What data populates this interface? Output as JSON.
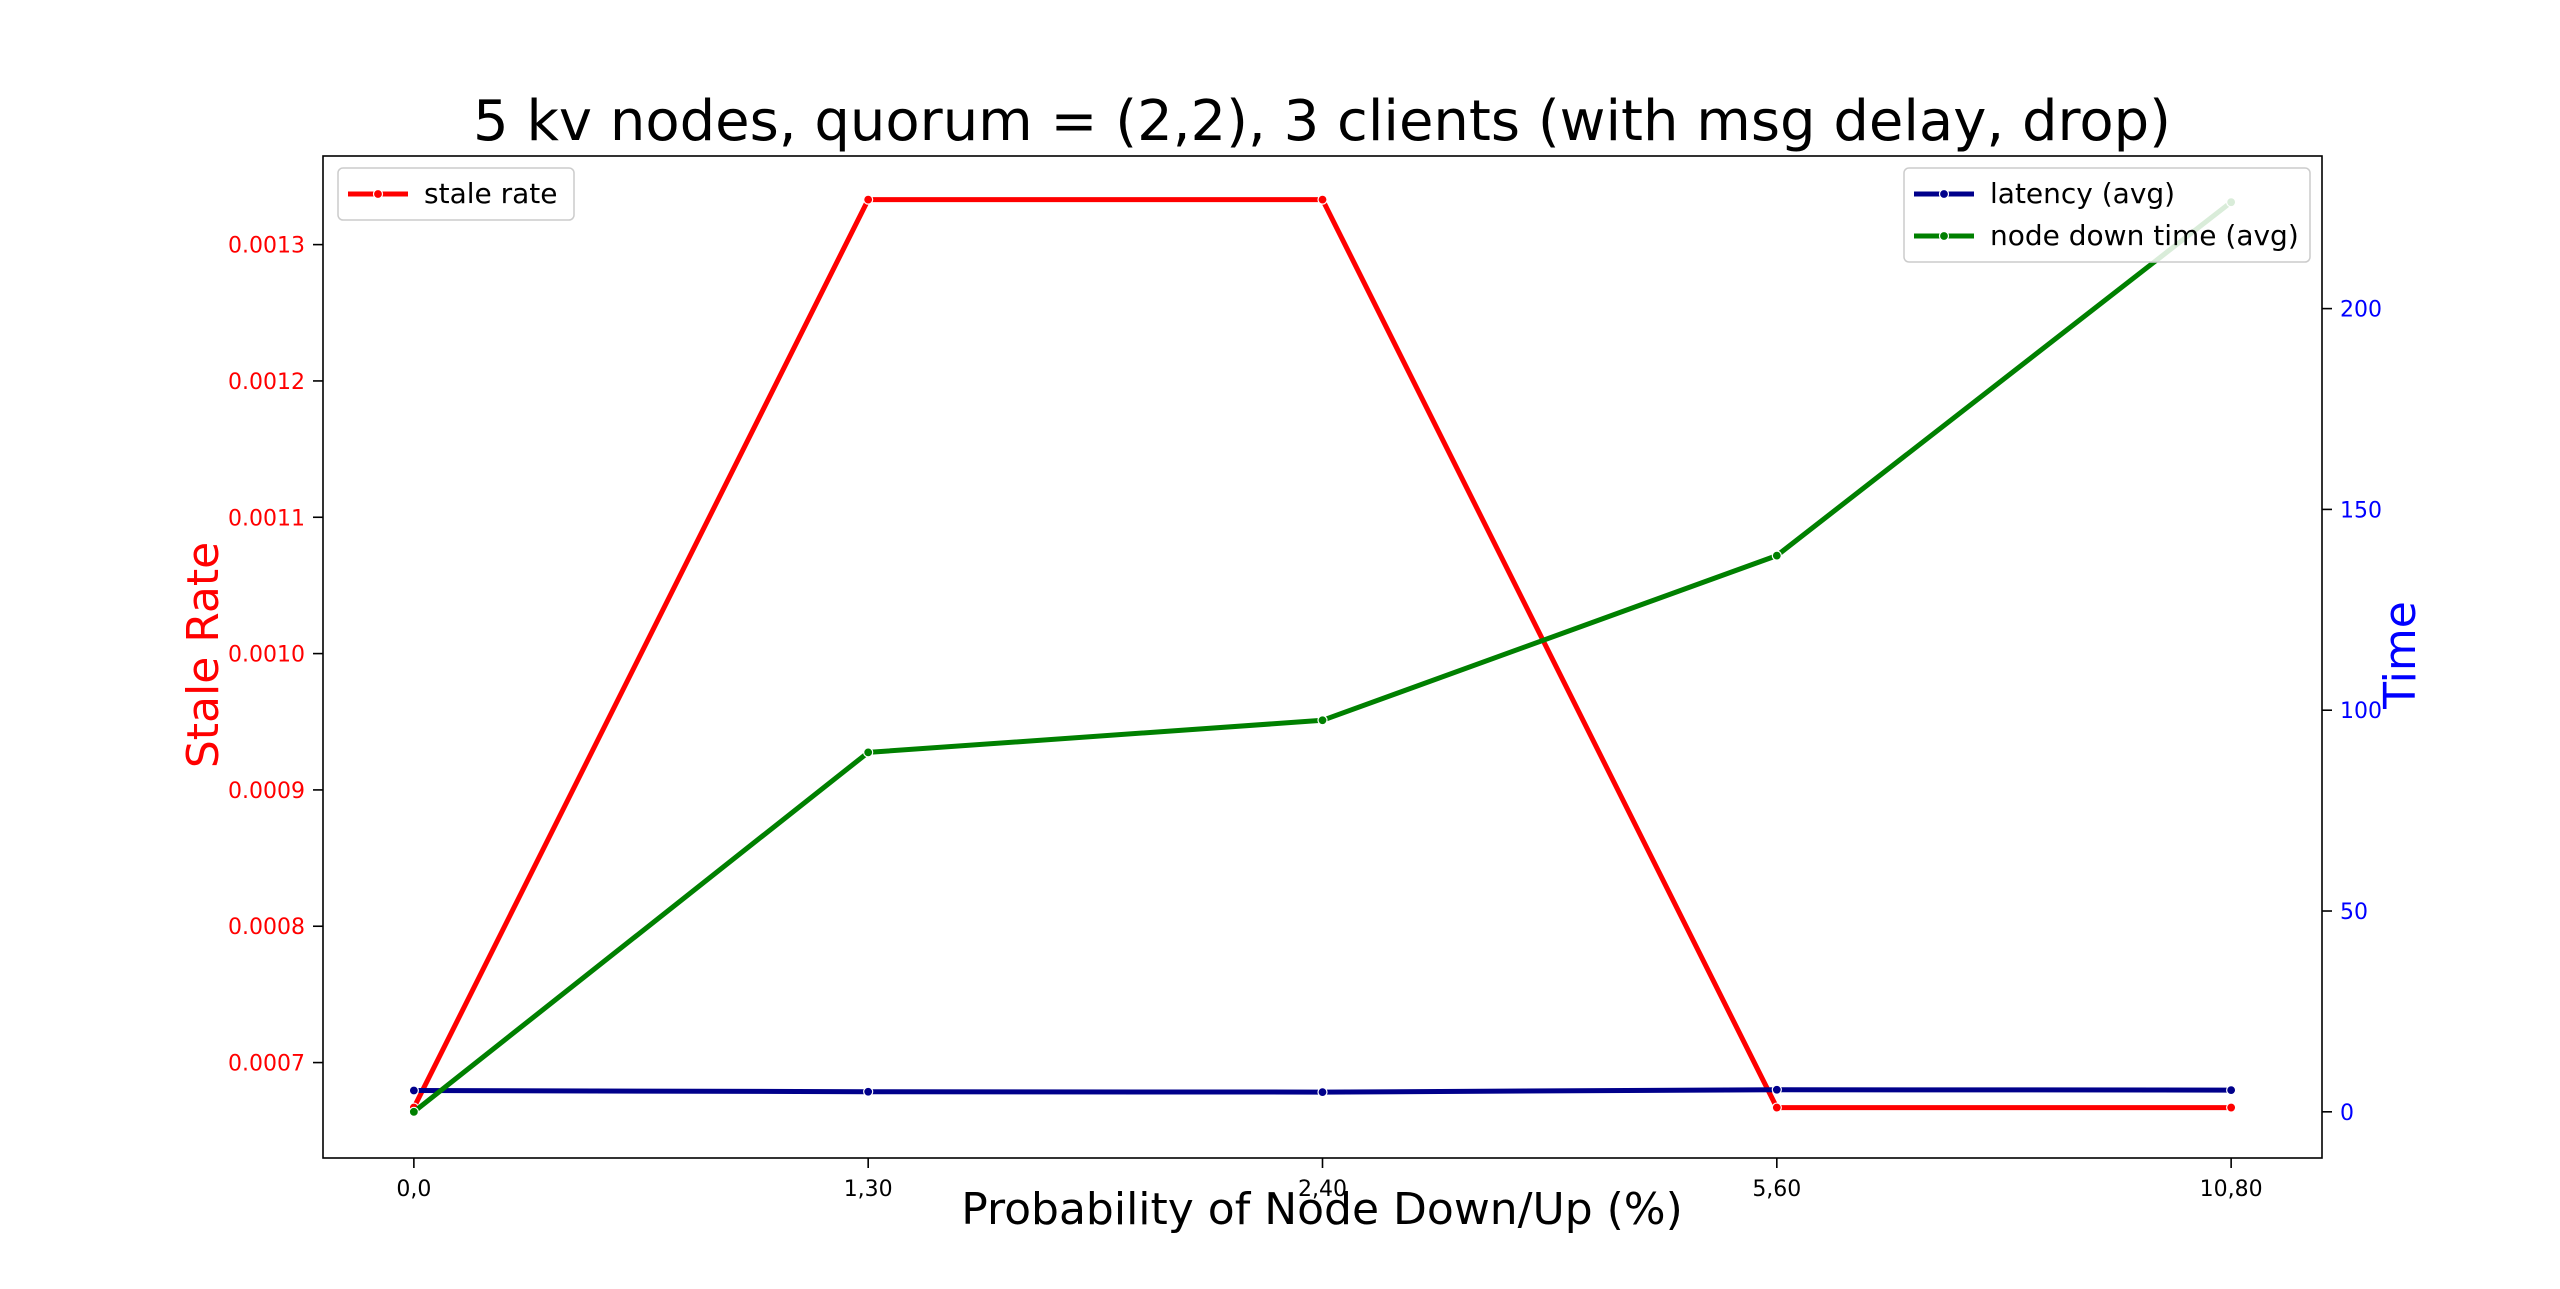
{
  "chart_data": {
    "type": "line",
    "title": "5 kv nodes, quorum = (2,2), 3 clients (with msg delay, drop)",
    "xlabel": "Probability of Node Down/Up (%)",
    "ylabel_left": "Stale Rate",
    "ylabel_right": "Time",
    "categories": [
      "0,0",
      "1,30",
      "2,40",
      "5,60",
      "10,80"
    ],
    "y_left": {
      "ylim": [
        0.00063,
        0.001365
      ],
      "ticks": [
        0.0007,
        0.0008,
        0.0009,
        0.001,
        0.0011,
        0.0012,
        0.0013
      ],
      "tick_labels": [
        "0.0007",
        "0.0008",
        "0.0009",
        "0.0010",
        "0.0011",
        "0.0012",
        "0.0013"
      ],
      "color": "#ff0000"
    },
    "y_right": {
      "ylim": [
        -11.5,
        238
      ],
      "ticks": [
        0,
        50,
        100,
        150,
        200
      ],
      "tick_labels": [
        "0",
        "50",
        "100",
        "150",
        "200"
      ],
      "color": "#0000ff"
    },
    "series": [
      {
        "name": "stale rate",
        "axis": "left",
        "color": "#ff0000",
        "values": [
          0.000667,
          0.001333,
          0.001333,
          0.000667,
          0.000667
        ]
      },
      {
        "name": "latency (avg)",
        "axis": "right",
        "color": "#00008b",
        "values": [
          5.3,
          5.0,
          4.9,
          5.5,
          5.4
        ]
      },
      {
        "name": "node down time (avg)",
        "axis": "right",
        "color": "#008000",
        "values": [
          0,
          89.5,
          97.5,
          138.5,
          226.5
        ]
      }
    ],
    "legend_left": {
      "placement": "upper-left",
      "entries": [
        "stale rate"
      ]
    },
    "legend_right": {
      "placement": "upper-right",
      "entries": [
        "latency (avg)",
        "node down time (avg)"
      ]
    },
    "grid": false
  }
}
